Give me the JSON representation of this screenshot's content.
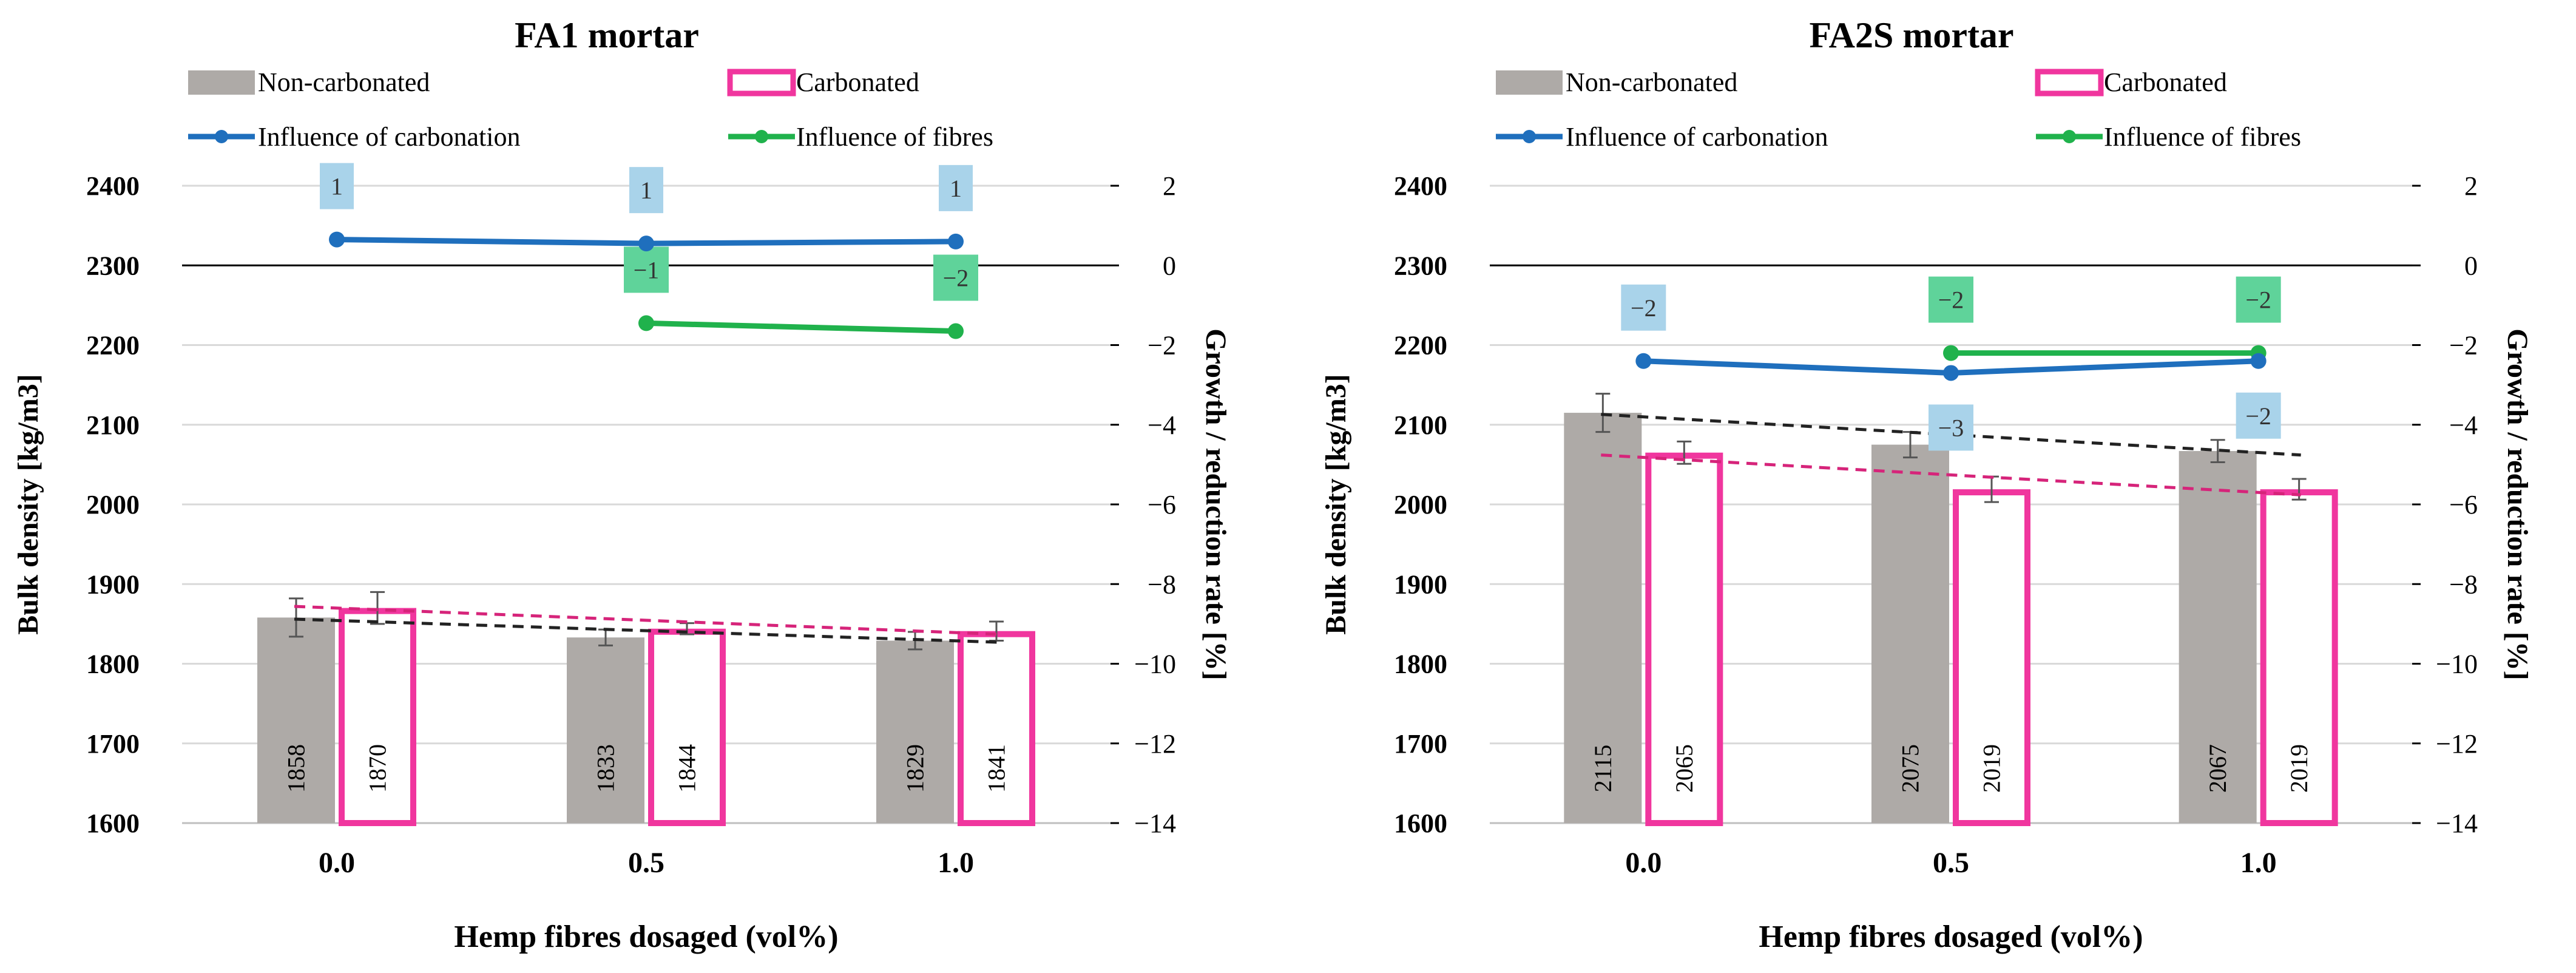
{
  "chart_data": [
    {
      "type": "bar",
      "title": "FA1 mortar",
      "xlabel": "Hemp fibres dosaged (vol%)",
      "ylabel": "Bulk density [kg/m3]",
      "y2label": "Growth / reduction rate [%]",
      "categories": [
        "0.0",
        "0.5",
        "1.0"
      ],
      "ylim": [
        1600,
        2400
      ],
      "yticks": [
        "1600",
        "1700",
        "1800",
        "1900",
        "2000",
        "2100",
        "2200",
        "2300",
        "2400"
      ],
      "y2lim": [
        -14,
        2
      ],
      "y2ticks": [
        "2",
        "0",
        "−2",
        "−4",
        "−6",
        "−8",
        "−10",
        "−12",
        "−14"
      ],
      "legend": {
        "non_carbonated": "Non-carbonated",
        "carbonated": "Carbonated",
        "influence_carbonation": "Influence of carbonation",
        "influence_fibres": "Influence of fibres"
      },
      "series": [
        {
          "name": "Non-carbonated",
          "values": [
            1858,
            1833,
            1829
          ],
          "labels": [
            "1858",
            "1833",
            "1829"
          ],
          "errors": [
            24,
            10,
            11
          ]
        },
        {
          "name": "Carbonated",
          "values": [
            1870,
            1844,
            1841
          ],
          "labels": [
            "1870",
            "1844",
            "1841"
          ],
          "errors": [
            20,
            7,
            12
          ]
        }
      ],
      "trend_non_carbonated": [
        1856,
        1827
      ],
      "trend_carbonated": [
        1872,
        1837
      ],
      "influence_of_carbonation": {
        "values": [
          0.65,
          0.55,
          0.6
        ],
        "labels": [
          "1",
          "1",
          "1"
        ],
        "label_pos": [
          "above",
          "above",
          "above"
        ]
      },
      "influence_of_fibres": {
        "values": [
          null,
          -1.45,
          -1.65
        ],
        "labels": [
          "",
          "−1",
          "−2"
        ],
        "label_pos": [
          "above",
          "above",
          "above"
        ]
      }
    },
    {
      "type": "bar",
      "title": "FA2S mortar",
      "xlabel": "Hemp fibres dosaged (vol%)",
      "ylabel": "Bulk density [kg/m3]",
      "y2label": "Growth / reduction rate [%]",
      "categories": [
        "0.0",
        "0.5",
        "1.0"
      ],
      "ylim": [
        1600,
        2400
      ],
      "yticks": [
        "1600",
        "1700",
        "1800",
        "1900",
        "2000",
        "2100",
        "2200",
        "2300",
        "2400"
      ],
      "y2lim": [
        -14,
        2
      ],
      "y2ticks": [
        "2",
        "0",
        "−2",
        "−4",
        "−6",
        "−8",
        "−10",
        "−12",
        "−14"
      ],
      "legend": {
        "non_carbonated": "Non-carbonated",
        "carbonated": "Carbonated",
        "influence_carbonation": "Influence of carbonation",
        "influence_fibres": "Influence of fibres"
      },
      "series": [
        {
          "name": "Non-carbonated",
          "values": [
            2115,
            2075,
            2067
          ],
          "labels": [
            "2115",
            "2075",
            "2067"
          ],
          "errors": [
            24,
            16,
            14
          ]
        },
        {
          "name": "Carbonated",
          "values": [
            2065,
            2019,
            2019
          ],
          "labels": [
            "2065",
            "2019",
            "2019"
          ],
          "errors": [
            14,
            16,
            13
          ]
        }
      ],
      "trend_non_carbonated": [
        2113,
        2062
      ],
      "trend_carbonated": [
        2062,
        2012
      ],
      "influence_of_carbonation": {
        "values": [
          -2.4,
          -2.7,
          -2.4
        ],
        "labels": [
          "−2",
          "−3",
          "−2"
        ],
        "label_pos": [
          "above",
          "below",
          "below"
        ]
      },
      "influence_of_fibres": {
        "values": [
          null,
          -2.2,
          -2.2
        ],
        "labels": [
          "",
          "−2",
          "−2"
        ],
        "label_pos": [
          "above",
          "above",
          "above"
        ]
      }
    }
  ],
  "colors": {
    "non_carbonated": "#aeaaa7",
    "carbonated": "#f0369e",
    "carbonation_line": "#1f6fbd",
    "fibres_line": "#20b24c",
    "carbonation_label_bg": "#a9d3ea",
    "fibres_label_bg": "#5fd39a",
    "grid": "#d9d9d9",
    "trend_non_carbonated": "#222222",
    "trend_carbonated": "#d6247a"
  }
}
